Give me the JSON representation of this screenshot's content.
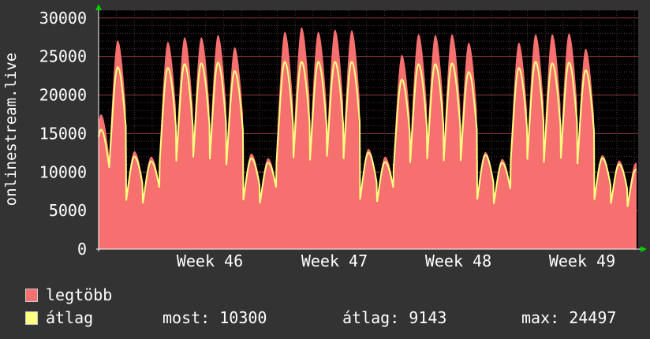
{
  "chart_data": {
    "type": "area",
    "ylabel": "onlinestream.live",
    "y_ticks": [
      "0",
      "5000",
      "10000",
      "15000",
      "20000",
      "25000",
      "30000"
    ],
    "ylim": [
      0,
      31000
    ],
    "x_ticks": [
      "Week 46",
      "Week 47",
      "Week 48",
      "Week 49"
    ],
    "grid": true,
    "colors": {
      "background": "#333333",
      "plot": "#000000",
      "max": "#f77070",
      "avg": "#ffff80",
      "grid_minor": "#5a3030",
      "grid_major": "#8a3a3a"
    },
    "series": [
      {
        "name": "legtöbb",
        "legend_swatch": "#f77070",
        "daily_peaks": [
          17500,
          27100,
          12700,
          12000,
          26900,
          27500,
          27500,
          27800,
          26200,
          12400,
          11800,
          28200,
          28800,
          28200,
          28500,
          28400,
          13000,
          12000,
          25200,
          27900,
          27800,
          27900,
          26800,
          12600,
          11700,
          26800,
          27900,
          27900,
          28000,
          26000,
          12200,
          11500,
          11200
        ]
      },
      {
        "name": "átlag",
        "legend_swatch": "#ffff80",
        "daily_peaks": [
          15500,
          23600,
          12000,
          11400,
          23500,
          24000,
          24100,
          24200,
          23100,
          11800,
          11200,
          24300,
          24300,
          24300,
          24300,
          24300,
          12500,
          11300,
          22000,
          24000,
          24000,
          24100,
          23000,
          12200,
          11200,
          23500,
          24300,
          24100,
          24200,
          23200,
          11800,
          11000,
          10300
        ]
      }
    ]
  },
  "legend": {
    "max_label": "legtöbb",
    "avg_label": "átlag",
    "most": "most: 10300",
    "atlag": "átlag: 9143",
    "max": "max: 24497"
  }
}
